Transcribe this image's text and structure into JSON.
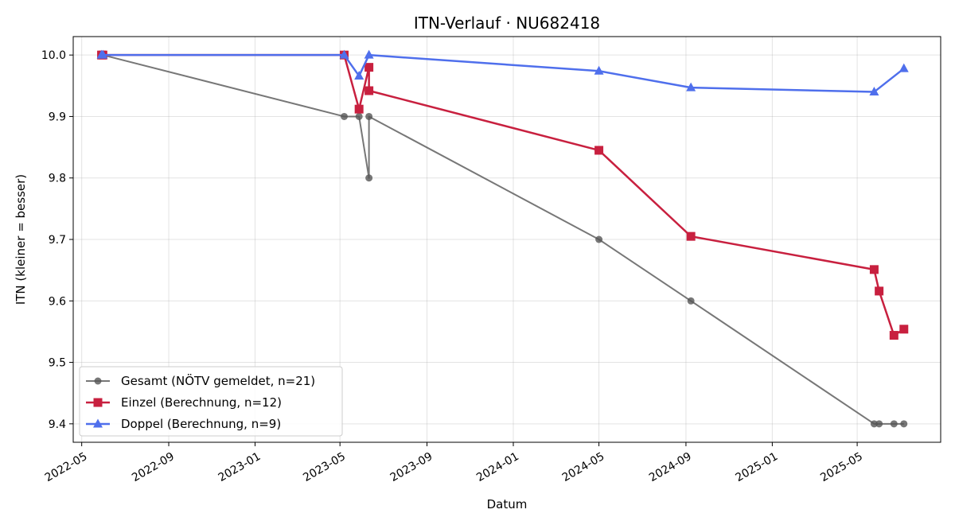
{
  "chart_data": {
    "type": "line",
    "title": "ITN-Verlauf · NU682418",
    "xlabel": "Datum",
    "ylabel": "ITN  (kleiner = besser)",
    "xlim": [
      "2022-04-19",
      "2025-08-27"
    ],
    "ylim": [
      9.37,
      10.03
    ],
    "x_ticks": [
      "2022-05",
      "2022-09",
      "2023-01",
      "2023-05",
      "2023-09",
      "2024-01",
      "2024-05",
      "2024-09",
      "2025-01",
      "2025-05"
    ],
    "y_ticks": [
      9.4,
      9.5,
      9.6,
      9.7,
      9.8,
      9.9,
      10.0
    ],
    "y_tick_labels": [
      "9.4",
      "9.5",
      "9.6",
      "9.7",
      "9.8",
      "9.9",
      "10.0"
    ],
    "grid": true,
    "legend_position": "lower-left",
    "series": [
      {
        "name": "Gesamt (NÖTV gemeldet, n=21)",
        "color": "#555555",
        "marker": "circle",
        "points": [
          {
            "x": "2022-05-29",
            "y": 10.0
          },
          {
            "x": "2022-05-31",
            "y": 10.0
          },
          {
            "x": "2023-05-07",
            "y": 9.9
          },
          {
            "x": "2023-05-28",
            "y": 9.9
          },
          {
            "x": "2023-06-11",
            "y": 9.8
          },
          {
            "x": "2023-06-11",
            "y": 9.9
          },
          {
            "x": "2024-05-01",
            "y": 9.7
          },
          {
            "x": "2024-09-08",
            "y": 9.6
          },
          {
            "x": "2025-05-25",
            "y": 9.4
          },
          {
            "x": "2025-06-01",
            "y": 9.4
          },
          {
            "x": "2025-06-22",
            "y": 9.4
          },
          {
            "x": "2025-07-06",
            "y": 9.4
          }
        ]
      },
      {
        "name": "Einzel (Berechnung, n=12)",
        "color": "#c8203f",
        "marker": "square",
        "points": [
          {
            "x": "2022-05-29",
            "y": 10.0
          },
          {
            "x": "2022-05-31",
            "y": 10.0
          },
          {
            "x": "2023-05-07",
            "y": 10.0
          },
          {
            "x": "2023-05-28",
            "y": 9.912
          },
          {
            "x": "2023-06-11",
            "y": 9.98
          },
          {
            "x": "2023-06-11",
            "y": 9.942
          },
          {
            "x": "2024-05-01",
            "y": 9.845
          },
          {
            "x": "2024-09-08",
            "y": 9.705
          },
          {
            "x": "2025-05-25",
            "y": 9.651
          },
          {
            "x": "2025-06-01",
            "y": 9.616
          },
          {
            "x": "2025-06-22",
            "y": 9.544
          },
          {
            "x": "2025-07-06",
            "y": 9.554
          }
        ]
      },
      {
        "name": "Doppel (Berechnung, n=9)",
        "color": "#4f6fec",
        "marker": "triangle",
        "points": [
          {
            "x": "2022-05-29",
            "y": 10.0
          },
          {
            "x": "2022-05-31",
            "y": 10.0
          },
          {
            "x": "2023-05-07",
            "y": 10.0
          },
          {
            "x": "2023-05-28",
            "y": 9.966
          },
          {
            "x": "2023-06-11",
            "y": 10.0
          },
          {
            "x": "2024-05-01",
            "y": 9.974
          },
          {
            "x": "2024-09-08",
            "y": 9.947
          },
          {
            "x": "2025-05-25",
            "y": 9.94
          },
          {
            "x": "2025-07-06",
            "y": 9.978
          }
        ]
      }
    ]
  }
}
